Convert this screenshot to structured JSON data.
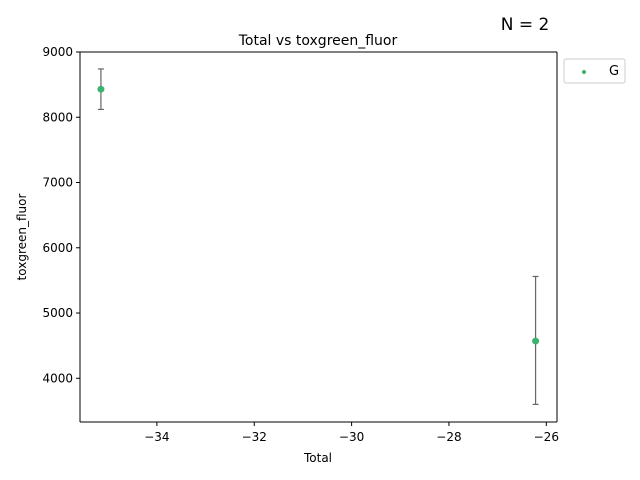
{
  "chart_data": {
    "type": "scatter",
    "title": "Total vs toxgreen_fluor",
    "xlabel": "Total",
    "ylabel": "toxgreen_fluor",
    "annotation": "N = 2",
    "xlim": [
      -35.58,
      -25.78
    ],
    "ylim": [
      3330,
      9000
    ],
    "xticks": [
      -34,
      -32,
      -30,
      -28,
      -26
    ],
    "xtick_labels": [
      "−34",
      "−32",
      "−30",
      "−28",
      "−26"
    ],
    "yticks": [
      4000,
      5000,
      6000,
      7000,
      8000,
      9000
    ],
    "ytick_labels": [
      "4000",
      "5000",
      "6000",
      "7000",
      "8000",
      "9000"
    ],
    "grid": false,
    "legend_placement": "outside-top-right",
    "series": [
      {
        "name": "G",
        "color": "#3cb371",
        "points": [
          {
            "x": -35.15,
            "y": 8430,
            "err_low": 8120,
            "err_high": 8740
          },
          {
            "x": -26.22,
            "y": 4570,
            "err_low": 3600,
            "err_high": 5560
          }
        ]
      }
    ]
  }
}
